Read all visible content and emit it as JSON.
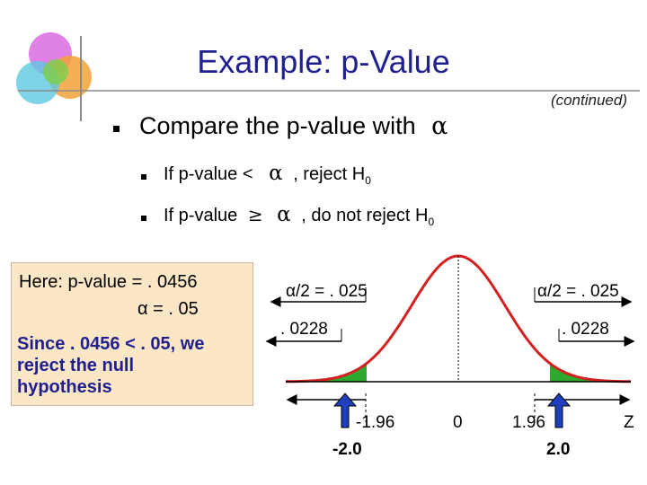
{
  "slide": {
    "title": "Example: p-Value",
    "continued": "(continued)",
    "main_point": "Compare the p-value with",
    "alpha_symbol": "α",
    "rule1": {
      "prefix": "If  p-value  <",
      "suffix": ", reject H",
      "sub": "0"
    },
    "rule2": {
      "prefix": "If  p-value",
      "geq": "≥",
      "suffix": ", do not reject H",
      "sub": "0"
    }
  },
  "box": {
    "line1": "Here:  p-value = . 0456",
    "line2": "α = . 05",
    "line3": "Since . 0456 < . 05, we",
    "line4": "reject the null",
    "line5": "hypothesis"
  },
  "diagram": {
    "left_alpha_label": "α/2 = . 025",
    "right_alpha_label": "α/2 = . 025",
    "left_p_label": ". 0228",
    "right_p_label": ". 0228",
    "left_critical": "-1.96",
    "center": "0",
    "right_critical": "1.96",
    "axis_label": "Z",
    "left_stat": "-2.0",
    "right_stat": "2.0",
    "curve_color": "#d42020",
    "tail_color": "#2fa82f",
    "arrow_color": "#1f3fbf"
  }
}
